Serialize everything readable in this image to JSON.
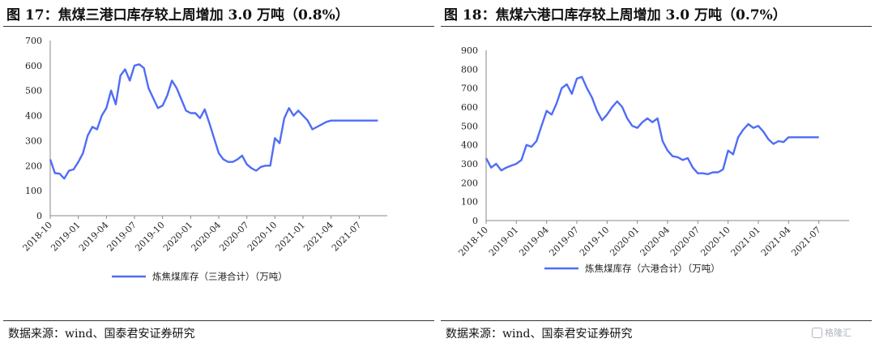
{
  "left": {
    "title": "图 17：焦煤三港口库存较上周增加 3.0 万吨（0.8%）",
    "source": "数据来源：wind、国泰君安证券研究",
    "legend": "炼焦煤库存（三港合计）（万吨）"
  },
  "right": {
    "title": "图 18：焦煤六港口库存较上周增加 3.0 万吨（0.7%）",
    "source": "数据来源：wind、国泰君安证券研究",
    "legend": "炼焦煤库存（六港合计）（万吨）"
  },
  "watermark": "格隆汇",
  "colors": {
    "line": "#4f6df5"
  },
  "chart_data": [
    {
      "type": "line",
      "title": "图 17：焦煤三港口库存较上周增加 3.0 万吨（0.8%）",
      "xlabel": "",
      "ylabel": "",
      "ylim": [
        0,
        700
      ],
      "yticks": [
        0,
        100,
        200,
        300,
        400,
        500,
        600,
        700
      ],
      "xticks": [
        "2018-10",
        "2019-01",
        "2019-04",
        "2019-07",
        "2019-10",
        "2020-01",
        "2020-04",
        "2020-07",
        "2020-10",
        "2021-01",
        "2021-04",
        "2021-07"
      ],
      "x_index_range": [
        0,
        36
      ],
      "grid": false,
      "legend_position": "bottom",
      "series": [
        {
          "name": "炼焦煤库存（三港合计）（万吨）",
          "x": [
            0,
            0.5,
            1,
            1.5,
            2,
            2.5,
            3,
            3.5,
            4,
            4.5,
            5,
            5.5,
            6,
            6.5,
            7,
            7.5,
            8,
            8.5,
            9,
            9.5,
            10,
            10.5,
            11,
            11.5,
            12,
            12.5,
            13,
            13.5,
            14,
            14.5,
            15,
            15.5,
            16,
            16.5,
            17,
            17.5,
            18,
            18.5,
            19,
            19.5,
            20,
            20.5,
            21,
            21.5,
            22,
            22.5,
            23,
            23.5,
            24,
            24.5,
            25,
            25.5,
            26,
            26.5,
            27,
            27.5,
            28,
            28.5,
            29,
            29.5,
            30,
            30.5,
            31,
            31.5,
            32,
            32.5,
            33,
            33.5,
            34,
            34.5,
            35
          ],
          "y": [
            225,
            170,
            168,
            148,
            180,
            185,
            215,
            250,
            320,
            355,
            345,
            400,
            430,
            500,
            445,
            560,
            585,
            540,
            600,
            605,
            590,
            510,
            470,
            430,
            440,
            480,
            540,
            510,
            465,
            420,
            410,
            410,
            390,
            425,
            370,
            310,
            250,
            225,
            215,
            215,
            225,
            240,
            205,
            190,
            180,
            195,
            200,
            200,
            310,
            290,
            390,
            430,
            400,
            420,
            400,
            380,
            345,
            355,
            365,
            375,
            380,
            380,
            380,
            380,
            380,
            380,
            380,
            380,
            380,
            380,
            380
          ]
        }
      ]
    },
    {
      "type": "line",
      "title": "图 18：焦煤六港口库存较上周增加 3.0 万吨（0.7%）",
      "xlabel": "",
      "ylabel": "",
      "ylim": [
        0,
        900
      ],
      "yticks": [
        0,
        100,
        200,
        300,
        400,
        500,
        600,
        700,
        800,
        900
      ],
      "xticks": [
        "2018-10",
        "2019-01",
        "2019-04",
        "2019-07",
        "2019-10",
        "2020-01",
        "2020-04",
        "2020-07",
        "2020-10",
        "2021-01",
        "2021-04",
        "2021-07"
      ],
      "x_index_range": [
        0,
        36
      ],
      "grid": false,
      "legend_position": "bottom",
      "series": [
        {
          "name": "炼焦煤库存（六港合计）（万吨）",
          "x": [
            0,
            0.5,
            1,
            1.5,
            2,
            2.5,
            3,
            3.5,
            4,
            4.5,
            5,
            5.5,
            6,
            6.5,
            7,
            7.5,
            8,
            8.5,
            9,
            9.5,
            10,
            10.5,
            11,
            11.5,
            12,
            12.5,
            13,
            13.5,
            14,
            14.5,
            15,
            15.5,
            16,
            16.5,
            17,
            17.5,
            18,
            18.5,
            19,
            19.5,
            20,
            20.5,
            21,
            21.5,
            22,
            22.5,
            23,
            23.5,
            24,
            24.5,
            25,
            25.5,
            26,
            26.5,
            27,
            27.5,
            28,
            28.5,
            29,
            29.5,
            30,
            30.5,
            31,
            31.5,
            32,
            32.5,
            33
          ],
          "y": [
            330,
            280,
            300,
            265,
            280,
            290,
            300,
            320,
            400,
            390,
            420,
            500,
            580,
            560,
            620,
            700,
            720,
            670,
            750,
            760,
            700,
            650,
            580,
            530,
            560,
            600,
            630,
            600,
            540,
            500,
            490,
            520,
            540,
            520,
            540,
            420,
            370,
            340,
            335,
            320,
            330,
            280,
            250,
            250,
            245,
            255,
            255,
            270,
            370,
            350,
            440,
            480,
            510,
            490,
            500,
            470,
            430,
            405,
            420,
            415,
            440,
            440,
            440,
            440,
            440,
            440,
            440
          ]
        }
      ]
    }
  ]
}
